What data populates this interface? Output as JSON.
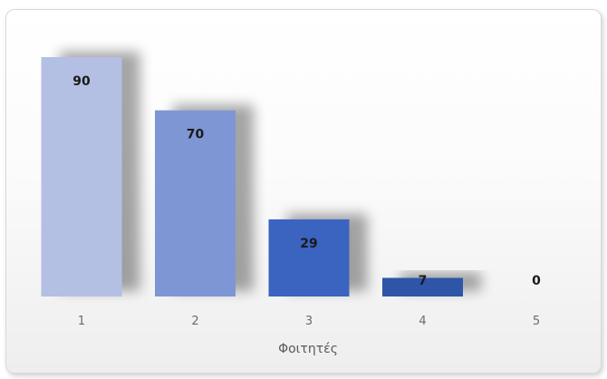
{
  "chart_data": {
    "type": "bar",
    "categories": [
      "1",
      "2",
      "3",
      "4",
      "5"
    ],
    "values": [
      90,
      70,
      29,
      7,
      0
    ],
    "xlabel": "Φοιτητές",
    "ylabel": "",
    "ylim": [
      0,
      90
    ],
    "grid": false,
    "legend": "none",
    "colors": [
      "#b3c0e4",
      "#7f96d4",
      "#3a64c0",
      "#2f55a8",
      "#2a4a96"
    ]
  }
}
